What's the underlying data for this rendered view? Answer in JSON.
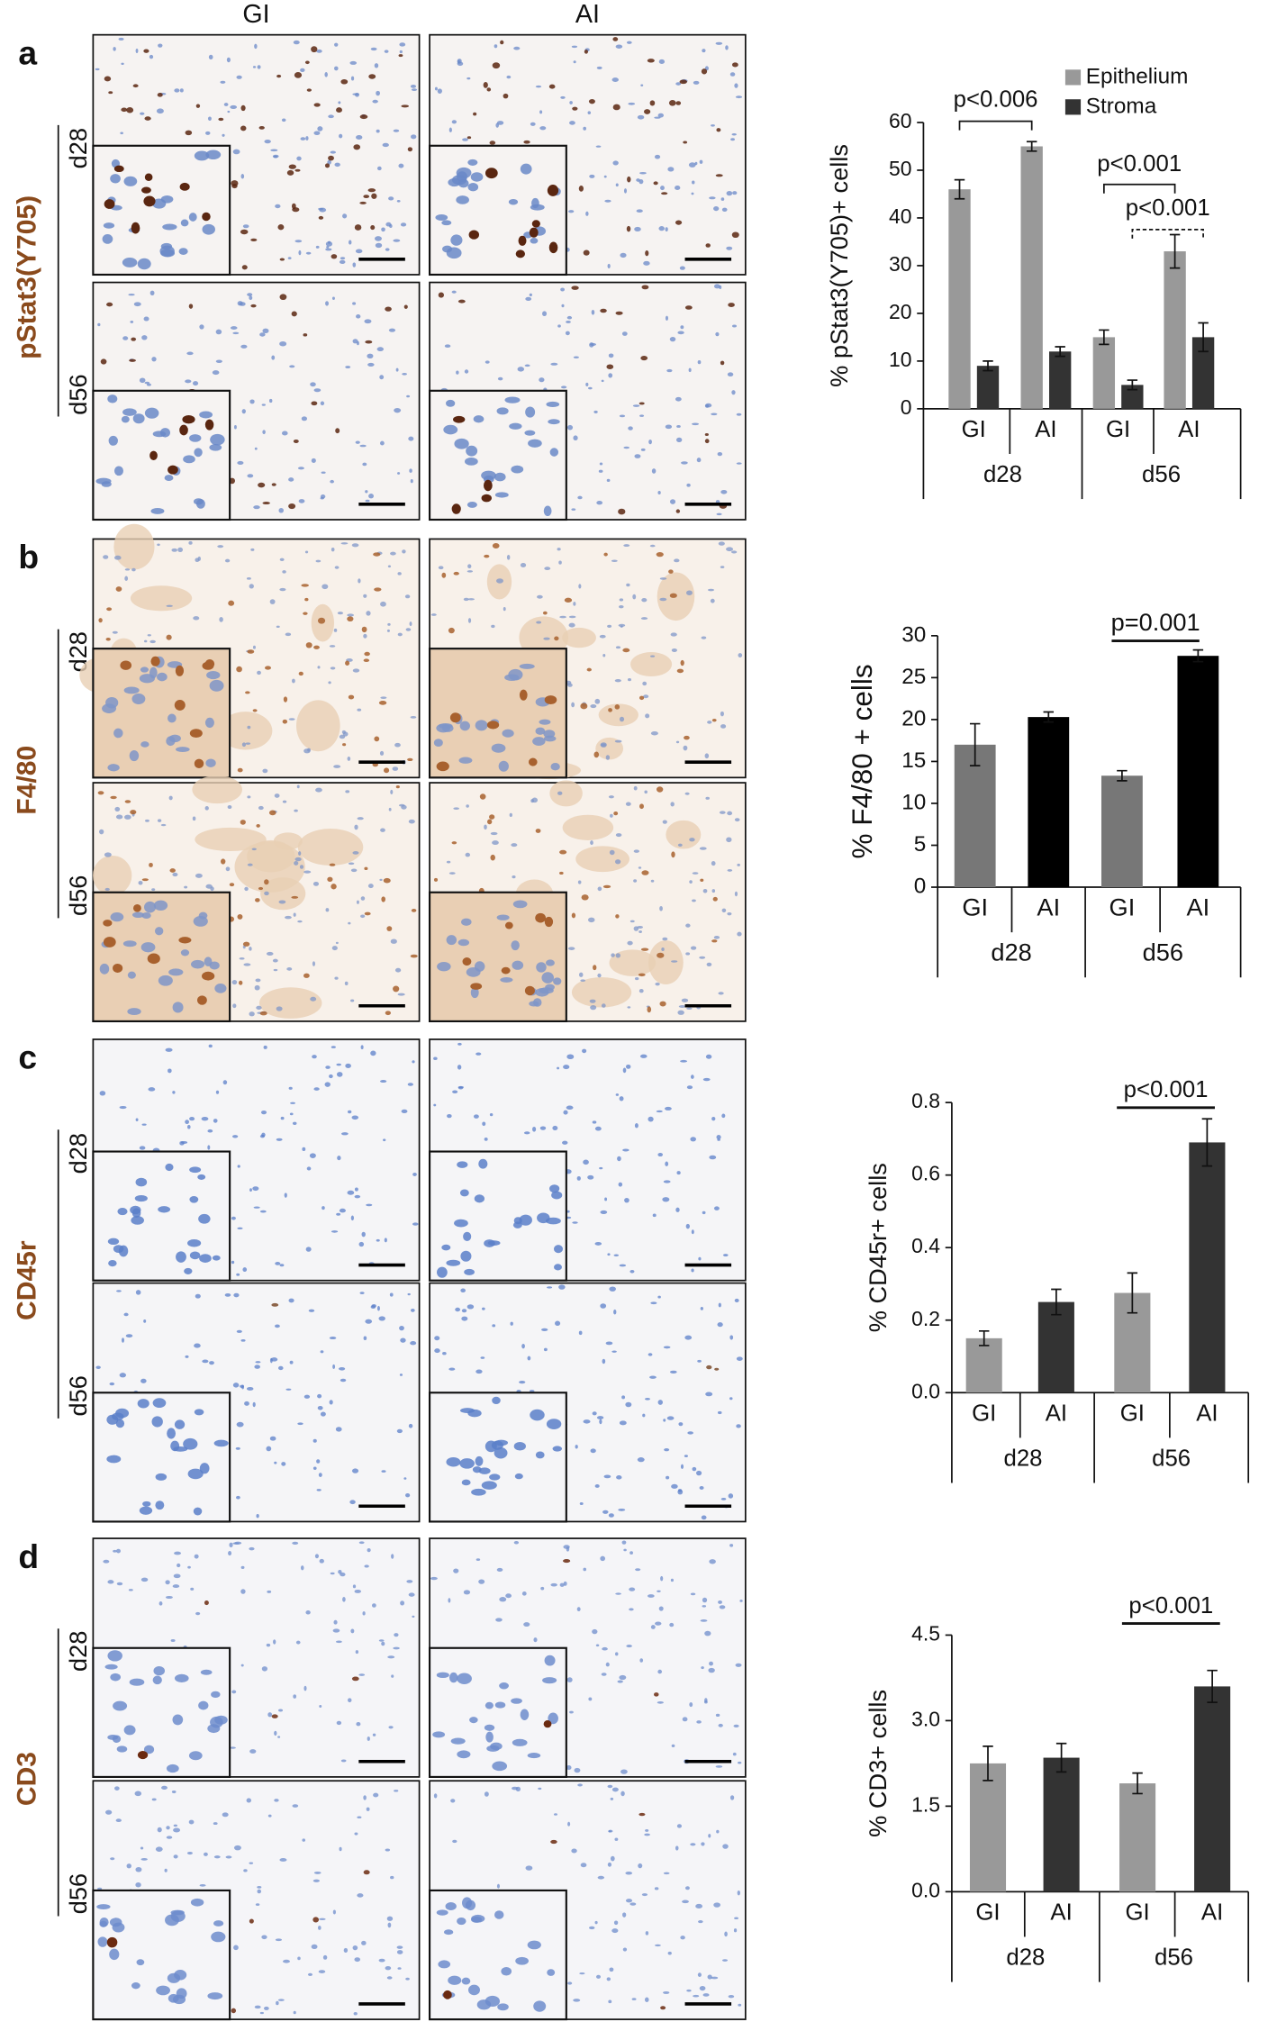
{
  "columns": [
    "GI",
    "AI"
  ],
  "panels": [
    {
      "letter": "a",
      "stain": "pStat3(Y705)",
      "rows": [
        "d28",
        "d56"
      ]
    },
    {
      "letter": "b",
      "stain": "F4/80",
      "rows": [
        "d28",
        "d56"
      ]
    },
    {
      "letter": "c",
      "stain": "CD45r",
      "rows": [
        "d28",
        "d56"
      ]
    },
    {
      "letter": "d",
      "stain": "CD3",
      "rows": [
        "d28",
        "d56"
      ]
    }
  ],
  "chart_data": [
    {
      "type": "bar",
      "ylabel": "% pStat3(Y705)+ cells",
      "categories": [
        "GI",
        "AI",
        "GI",
        "AI"
      ],
      "groups": [
        "d28",
        "d56"
      ],
      "series": [
        {
          "name": "Epithelium",
          "color": "#999999",
          "values": [
            46,
            55,
            15,
            33
          ],
          "errors": [
            2,
            1,
            1.5,
            3.5
          ]
        },
        {
          "name": "Stroma",
          "color": "#333333",
          "values": [
            9,
            12,
            5,
            15
          ],
          "errors": [
            1,
            1,
            1,
            3
          ]
        }
      ],
      "ylim": [
        0,
        60
      ],
      "yticks": [
        0,
        10,
        20,
        30,
        40,
        50,
        60
      ],
      "legend": "top-right",
      "annotations": [
        "p<0.006",
        "p<0.001",
        "p<0.001"
      ]
    },
    {
      "type": "bar",
      "ylabel": "% F4/80 + cells",
      "categories": [
        "GI",
        "AI",
        "GI",
        "AI"
      ],
      "groups": [
        "d28",
        "d56"
      ],
      "series": [
        {
          "colors": [
            "#777777",
            "#000000",
            "#777777",
            "#000000"
          ],
          "values": [
            17,
            20.3,
            13.3,
            27.6
          ],
          "errors": [
            2.5,
            0.6,
            0.6,
            0.7
          ]
        }
      ],
      "ylim": [
        0,
        30
      ],
      "yticks": [
        0,
        5,
        10,
        15,
        20,
        25,
        30
      ],
      "annotations": [
        "p=0.001"
      ]
    },
    {
      "type": "bar",
      "ylabel": "% CD45r+ cells",
      "categories": [
        "GI",
        "AI",
        "GI",
        "AI"
      ],
      "groups": [
        "d28",
        "d56"
      ],
      "series": [
        {
          "colors": [
            "#999999",
            "#333333",
            "#999999",
            "#333333"
          ],
          "values": [
            0.15,
            0.25,
            0.275,
            0.69
          ],
          "errors": [
            0.02,
            0.035,
            0.055,
            0.065
          ]
        }
      ],
      "ylim": [
        0,
        0.8
      ],
      "yticks": [
        {
          "value": 0,
          "label": "0.0"
        },
        0.2,
        0.4,
        0.6,
        0.8
      ],
      "annotations": [
        "p<0.001"
      ]
    },
    {
      "type": "bar",
      "ylabel": "% CD3+ cells",
      "categories": [
        "GI",
        "AI",
        "GI",
        "AI"
      ],
      "groups": [
        "d28",
        "d56"
      ],
      "series": [
        {
          "colors": [
            "#999999",
            "#333333",
            "#999999",
            "#333333"
          ],
          "values": [
            2.25,
            2.35,
            1.9,
            3.6
          ],
          "errors": [
            0.3,
            0.25,
            0.18,
            0.28
          ]
        }
      ],
      "ylim": [
        0,
        4.5
      ],
      "yticks": [
        {
          "value": 0,
          "label": "0.0"
        },
        1.5,
        {
          "value": 3,
          "label": "3.0"
        },
        4.5
      ],
      "annotations": [
        "p<0.001"
      ]
    }
  ]
}
